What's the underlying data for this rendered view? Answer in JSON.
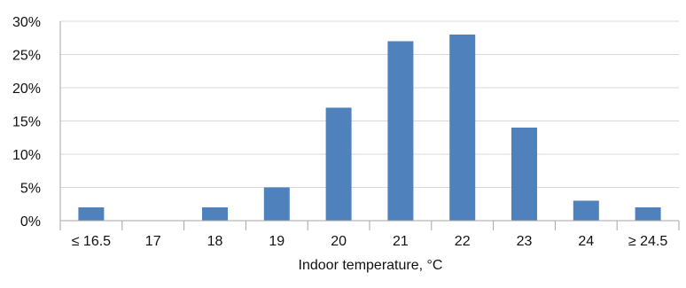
{
  "chart_data": {
    "type": "bar",
    "xlabel": "Indoor temperature, °C",
    "ylabel": "",
    "categories": [
      "≤ 16.5",
      "17",
      "18",
      "19",
      "20",
      "21",
      "22",
      "23",
      "24",
      "≥ 24.5"
    ],
    "values": [
      2,
      0,
      2,
      5,
      17,
      27,
      28,
      14,
      3,
      2
    ],
    "value_unit": "%",
    "ylim": [
      0,
      30
    ],
    "yticks": [
      0,
      5,
      10,
      15,
      20,
      25,
      30
    ],
    "ytick_labels": [
      "0%",
      "5%",
      "10%",
      "15%",
      "20%",
      "25%",
      "30%"
    ],
    "grid": "horizontal",
    "legend": "none",
    "colors": {
      "bar": "#4f81bd",
      "grid": "#d9d9d9",
      "axis": "#a6a6a6",
      "text": "#111111"
    }
  }
}
